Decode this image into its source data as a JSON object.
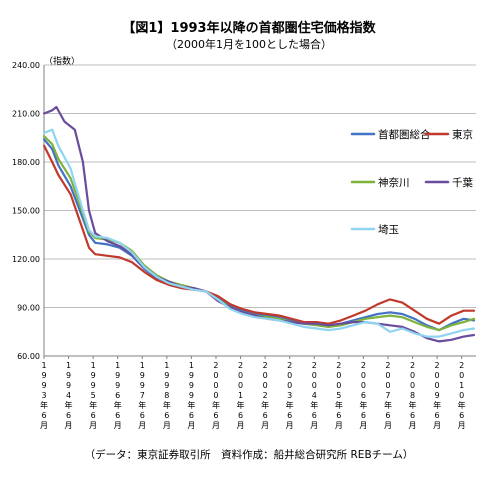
{
  "chart_data": {
    "type": "line",
    "title": "【図1】1993年以降の首都圏住宅価格指数",
    "subtitle": "（2000年1月を100とした場合）",
    "ylabel": "（指数）",
    "source": "（データ：東京証券取引所　資料作成：船井総合研究所 REBチーム）",
    "ylim": [
      60,
      240
    ],
    "yticks": [
      "60.00",
      "90.00",
      "120.00",
      "150.00",
      "180.00",
      "210.00",
      "240.00"
    ],
    "xlim": [
      1993.417,
      2011.0
    ],
    "xtick_years": [
      1993,
      1994,
      1995,
      1996,
      1997,
      1998,
      1999,
      2000,
      2001,
      2002,
      2003,
      2004,
      2005,
      2006,
      2007,
      2008,
      2009,
      2010
    ],
    "xtick_labels": [
      [
        "1",
        "9",
        "9",
        "3",
        "年",
        "6",
        "月"
      ],
      [
        "1",
        "9",
        "9",
        "4",
        "年",
        "6",
        "月"
      ],
      [
        "1",
        "9",
        "9",
        "5",
        "年",
        "6",
        "月"
      ],
      [
        "1",
        "9",
        "9",
        "6",
        "年",
        "6",
        "月"
      ],
      [
        "1",
        "9",
        "9",
        "7",
        "年",
        "6",
        "月"
      ],
      [
        "1",
        "9",
        "9",
        "8",
        "年",
        "6",
        "月"
      ],
      [
        "1",
        "9",
        "9",
        "9",
        "年",
        "6",
        "月"
      ],
      [
        "2",
        "0",
        "0",
        "0",
        "年",
        "6",
        "月"
      ],
      [
        "2",
        "0",
        "0",
        "1",
        "年",
        "6",
        "月"
      ],
      [
        "2",
        "0",
        "0",
        "2",
        "年",
        "6",
        "月"
      ],
      [
        "2",
        "0",
        "0",
        "3",
        "年",
        "6",
        "月"
      ],
      [
        "2",
        "0",
        "0",
        "4",
        "年",
        "6",
        "月"
      ],
      [
        "2",
        "0",
        "0",
        "5",
        "年",
        "6",
        "月"
      ],
      [
        "2",
        "0",
        "0",
        "6",
        "年",
        "6",
        "月"
      ],
      [
        "2",
        "0",
        "0",
        "7",
        "年",
        "6",
        "月"
      ],
      [
        "2",
        "0",
        "0",
        "8",
        "年",
        "6",
        "月"
      ],
      [
        "2",
        "0",
        "0",
        "9",
        "年",
        "6",
        "月"
      ],
      [
        "2",
        "0",
        "1",
        "0",
        "年",
        "6",
        "月"
      ]
    ],
    "grid": "horizontal",
    "legend_position": "right",
    "series": [
      {
        "name": "首都圏総合",
        "color": "#4472C4",
        "x": [
          1993.42,
          1993.75,
          1994.0,
          1994.5,
          1995.0,
          1995.25,
          1995.5,
          1996.0,
          1996.5,
          1997.0,
          1997.5,
          1998.0,
          1998.5,
          1999.0,
          1999.5,
          2000.0,
          2000.5,
          2001.0,
          2001.5,
          2002.0,
          2002.5,
          2003.0,
          2003.5,
          2004.0,
          2004.5,
          2005.0,
          2005.5,
          2006.0,
          2006.5,
          2007.0,
          2007.5,
          2008.0,
          2008.5,
          2009.0,
          2009.5,
          2010.0,
          2010.5,
          2010.92
        ],
        "y": [
          194,
          188,
          178,
          165,
          145,
          135,
          130,
          129,
          127,
          122,
          114,
          108,
          105,
          103,
          102,
          100,
          96,
          91,
          88,
          86,
          85,
          84,
          82,
          80,
          80,
          79,
          80,
          82,
          84,
          86,
          87,
          86,
          83,
          79,
          76,
          80,
          83,
          82
        ]
      },
      {
        "name": "東京",
        "color": "#C0392B",
        "x": [
          1993.42,
          1993.75,
          1994.0,
          1994.5,
          1995.0,
          1995.25,
          1995.5,
          1996.0,
          1996.5,
          1997.0,
          1997.5,
          1998.0,
          1998.5,
          1999.0,
          1999.5,
          2000.0,
          2000.5,
          2001.0,
          2001.5,
          2002.0,
          2002.5,
          2003.0,
          2003.5,
          2004.0,
          2004.5,
          2005.0,
          2005.5,
          2006.0,
          2006.5,
          2007.0,
          2007.5,
          2008.0,
          2008.5,
          2009.0,
          2009.5,
          2010.0,
          2010.5,
          2010.92
        ],
        "y": [
          190,
          180,
          172,
          160,
          138,
          127,
          123,
          122,
          121,
          118,
          112,
          107,
          104,
          102,
          101,
          100,
          97,
          92,
          89,
          87,
          86,
          85,
          83,
          81,
          81,
          80,
          82,
          85,
          88,
          92,
          95,
          93,
          88,
          83,
          80,
          85,
          88,
          88
        ]
      },
      {
        "name": "神奈川",
        "color": "#7DB33D",
        "x": [
          1993.42,
          1993.75,
          1994.0,
          1994.5,
          1995.0,
          1995.25,
          1995.5,
          1996.0,
          1996.5,
          1997.0,
          1997.5,
          1998.0,
          1998.5,
          1999.0,
          1999.5,
          2000.0,
          2000.5,
          2001.0,
          2001.5,
          2002.0,
          2002.5,
          2003.0,
          2003.5,
          2004.0,
          2004.5,
          2005.0,
          2005.5,
          2006.0,
          2006.5,
          2007.0,
          2007.5,
          2008.0,
          2008.5,
          2009.0,
          2009.5,
          2010.0,
          2010.5,
          2010.92
        ],
        "y": [
          196,
          191,
          182,
          170,
          148,
          137,
          133,
          132,
          130,
          125,
          116,
          110,
          106,
          104,
          102,
          100,
          95,
          90,
          87,
          85,
          84,
          83,
          81,
          80,
          79,
          78,
          79,
          81,
          83,
          84,
          85,
          84,
          81,
          78,
          76,
          79,
          81,
          83
        ]
      },
      {
        "name": "千葉",
        "color": "#6A4C9C",
        "x": [
          1993.42,
          1993.75,
          1993.92,
          1994.25,
          1994.67,
          1995.0,
          1995.25,
          1995.5,
          1996.0,
          1996.5,
          1997.0,
          1997.5,
          1998.0,
          1998.5,
          1999.0,
          1999.5,
          2000.0,
          2000.5,
          2001.0,
          2001.5,
          2002.0,
          2002.5,
          2003.0,
          2003.5,
          2004.0,
          2004.5,
          2005.0,
          2005.5,
          2006.0,
          2006.5,
          2007.0,
          2007.5,
          2008.0,
          2008.5,
          2009.0,
          2009.5,
          2010.0,
          2010.5,
          2010.92
        ],
        "y": [
          210,
          212,
          214,
          205,
          200,
          180,
          150,
          136,
          131,
          128,
          123,
          115,
          109,
          106,
          103,
          102,
          100,
          94,
          90,
          87,
          85,
          83,
          82,
          81,
          80,
          80,
          79,
          80,
          81,
          81,
          80,
          79,
          78,
          75,
          71,
          69,
          70,
          72,
          73
        ]
      },
      {
        "name": "埼玉",
        "color": "#8FD4F0",
        "x": [
          1993.42,
          1993.75,
          1994.0,
          1994.5,
          1995.0,
          1995.25,
          1995.5,
          1996.0,
          1996.5,
          1997.0,
          1997.5,
          1998.0,
          1998.5,
          1999.0,
          1999.5,
          2000.0,
          2000.5,
          2001.0,
          2001.5,
          2002.0,
          2002.5,
          2003.0,
          2003.5,
          2004.0,
          2004.5,
          2005.0,
          2005.5,
          2006.0,
          2006.5,
          2007.0,
          2007.5,
          2008.0,
          2008.5,
          2009.0,
          2009.5,
          2010.0,
          2010.5,
          2010.92
        ],
        "y": [
          198,
          200,
          190,
          176,
          150,
          138,
          134,
          133,
          130,
          124,
          115,
          109,
          105,
          103,
          101,
          100,
          95,
          89,
          86,
          84,
          83,
          82,
          80,
          78,
          77,
          76,
          77,
          79,
          81,
          80,
          75,
          77,
          74,
          72,
          72,
          74,
          76,
          77
        ]
      }
    ]
  }
}
